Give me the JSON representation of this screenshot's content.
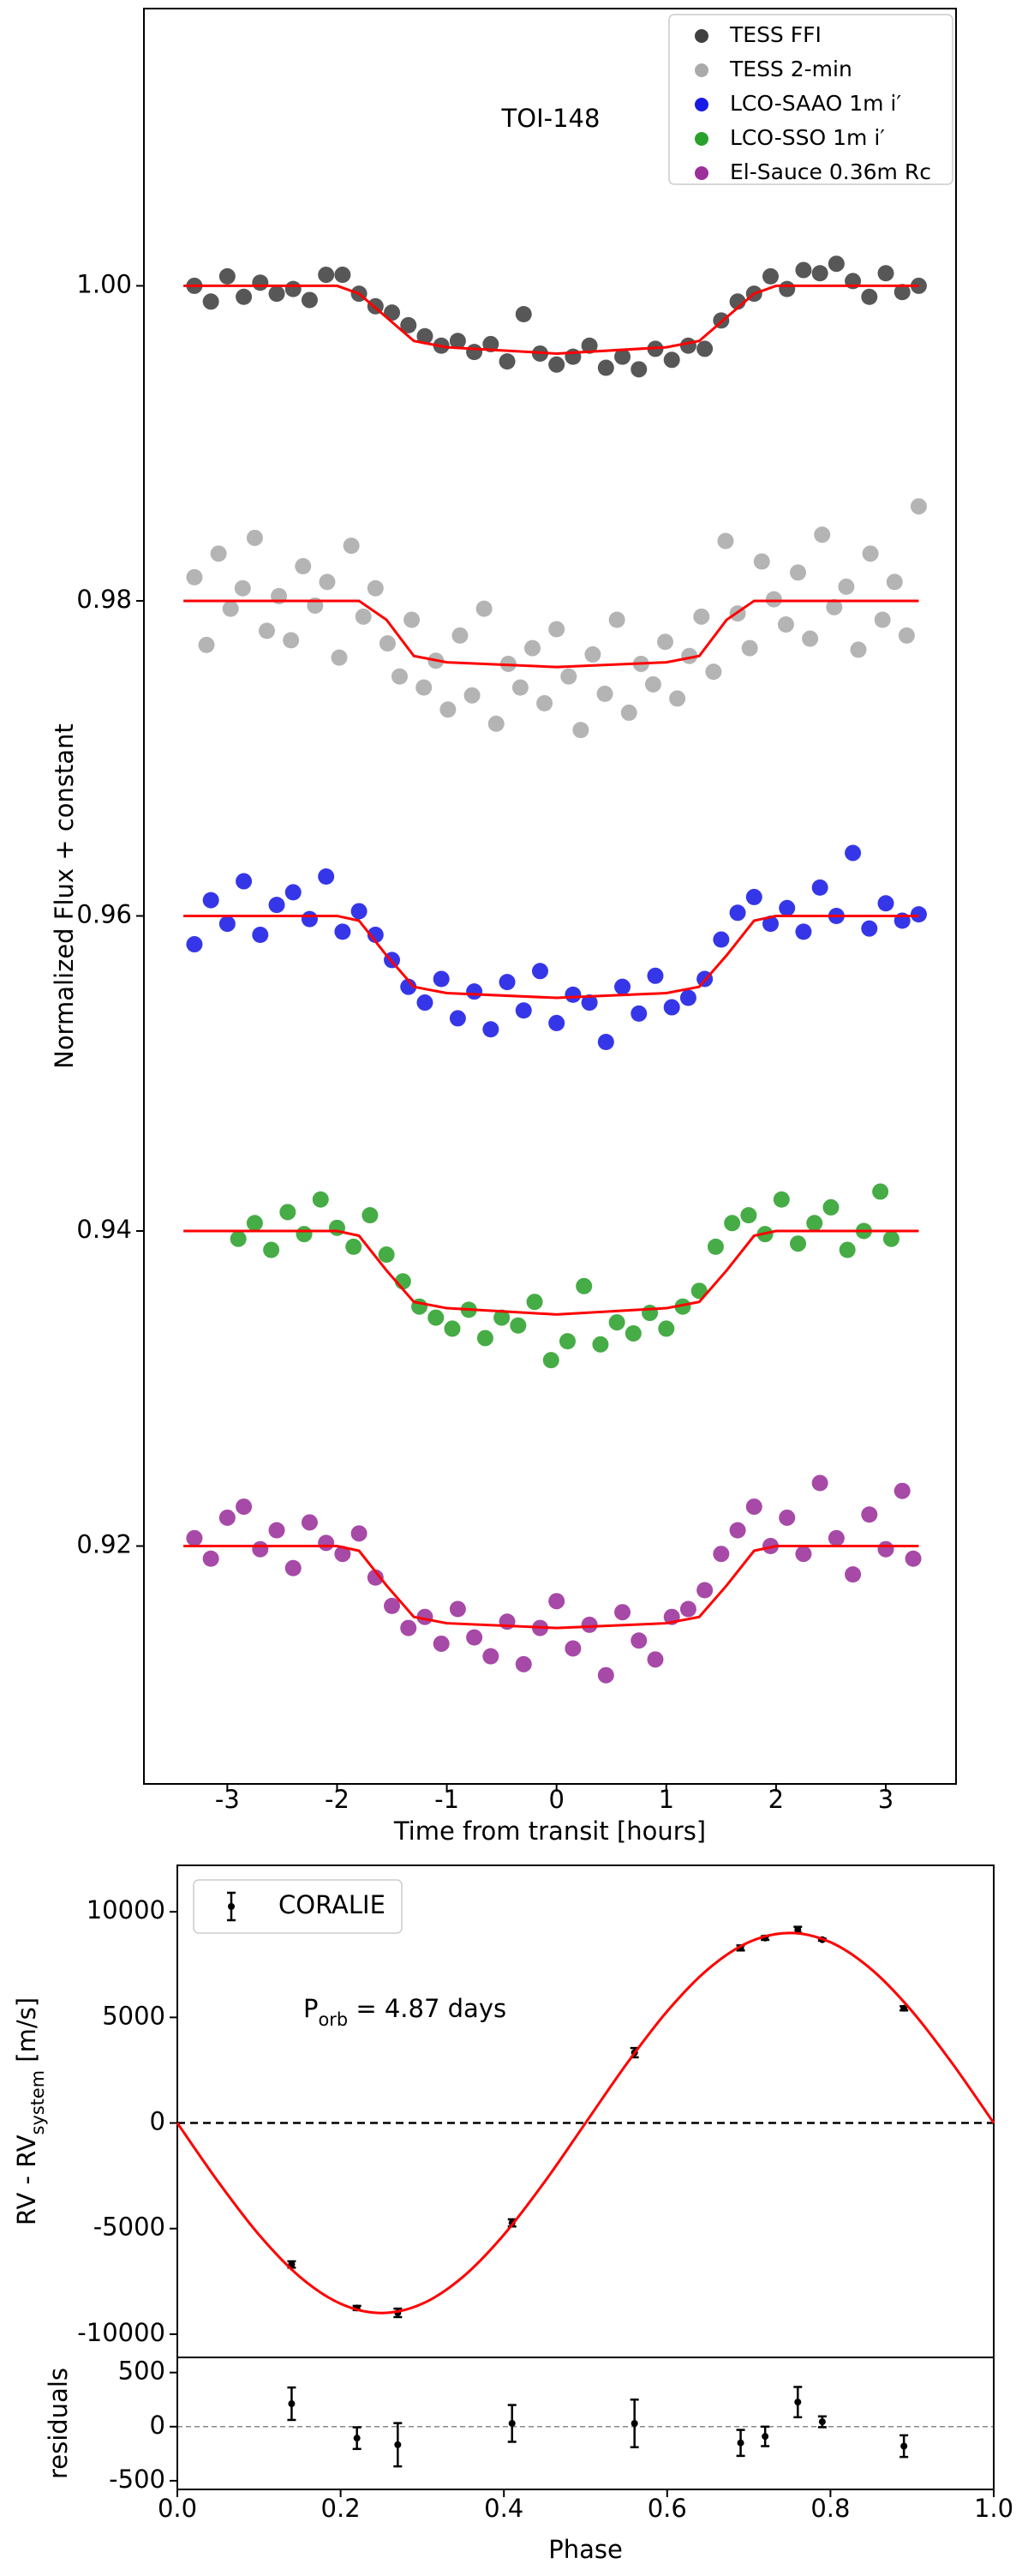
{
  "chart_data": [
    {
      "type": "scatter",
      "annotation": "TOI-148",
      "x_label": "Time from transit [hours]",
      "y_label": "Normalized Flux + constant",
      "xlim": [
        -3.76,
        3.64
      ],
      "ylim": [
        0.9049,
        1.0176
      ],
      "xticks": [
        -3,
        -2,
        -1,
        0,
        1,
        2,
        3
      ],
      "yticks": [
        0.92,
        0.94,
        0.96,
        0.98,
        {
          "value": 1,
          "label": "1.00"
        }
      ],
      "legend": "upper right",
      "series": [
        {
          "name": "TESS FFI",
          "color": "#404040",
          "x": [
            -3.3,
            -3.15,
            -3.0,
            -2.85,
            -2.7,
            -2.55,
            -2.4,
            -2.25,
            -2.1,
            -1.95,
            -1.8,
            -1.65,
            -1.5,
            -1.35,
            -1.2,
            -1.05,
            -0.9,
            -0.75,
            -0.6,
            -0.45,
            -0.3,
            -0.15,
            0.0,
            0.15,
            0.3,
            0.45,
            0.6,
            0.75,
            0.9,
            1.05,
            1.2,
            1.35,
            1.5,
            1.65,
            1.8,
            1.95,
            2.1,
            2.25,
            2.4,
            2.55,
            2.7,
            2.85,
            3.0,
            3.15,
            3.3
          ],
          "values": [
            1.0,
            0.999,
            1.0006,
            0.9993,
            1.0002,
            0.9995,
            0.9998,
            0.9991,
            1.0007,
            1.0007,
            0.9995,
            0.9987,
            0.9983,
            0.9975,
            0.9968,
            0.9962,
            0.9965,
            0.9958,
            0.9963,
            0.9952,
            0.9982,
            0.9957,
            0.995,
            0.9955,
            0.9962,
            0.9948,
            0.9955,
            0.9947,
            0.996,
            0.9953,
            0.9962,
            0.996,
            0.9978,
            0.999,
            0.9995,
            1.0006,
            0.9998,
            1.001,
            1.0008,
            1.0014,
            1.0003,
            0.9993,
            1.0008,
            0.9996,
            1.0
          ]
        },
        {
          "name": "TESS 2-min",
          "color": "#aaaaaa",
          "x": [
            -3.3,
            -3.19,
            -3.08,
            -2.97,
            -2.86,
            -2.75,
            -2.64,
            -2.53,
            -2.42,
            -2.31,
            -2.2,
            -2.09,
            -1.98,
            -1.87,
            -1.76,
            -1.65,
            -1.54,
            -1.43,
            -1.32,
            -1.21,
            -1.1,
            -0.99,
            -0.88,
            -0.77,
            -0.66,
            -0.55,
            -0.44,
            -0.33,
            -0.22,
            -0.11,
            0,
            0.11,
            0.22,
            0.33,
            0.44,
            0.55,
            0.66,
            0.77,
            0.88,
            0.99,
            1.1,
            1.21,
            1.32,
            1.43,
            1.54,
            1.65,
            1.76,
            1.87,
            1.98,
            2.09,
            2.2,
            2.31,
            2.42,
            2.53,
            2.64,
            2.75,
            2.86,
            2.97,
            3.08,
            3.19,
            3.3
          ],
          "values": [
            0.9815,
            0.9772,
            0.983,
            0.9795,
            0.9808,
            0.984,
            0.9781,
            0.9803,
            0.9775,
            0.9822,
            0.9797,
            0.9812,
            0.9764,
            0.9835,
            0.979,
            0.9808,
            0.9773,
            0.9752,
            0.9788,
            0.9745,
            0.9762,
            0.9731,
            0.9778,
            0.974,
            0.9795,
            0.9722,
            0.976,
            0.9745,
            0.977,
            0.9735,
            0.9782,
            0.9752,
            0.9718,
            0.9766,
            0.9741,
            0.9788,
            0.9729,
            0.976,
            0.9747,
            0.9774,
            0.9738,
            0.9765,
            0.979,
            0.9755,
            0.9838,
            0.9792,
            0.977,
            0.9825,
            0.9801,
            0.9785,
            0.9818,
            0.9776,
            0.9842,
            0.9796,
            0.9809,
            0.9769,
            0.983,
            0.9788,
            0.9812,
            0.9778,
            0.986
          ]
        },
        {
          "name": "LCO-SAAO 1m i′",
          "color": "#1a1ae6",
          "x": [
            -3.3,
            -3.15,
            -3.0,
            -2.85,
            -2.7,
            -2.55,
            -2.4,
            -2.25,
            -2.1,
            -1.95,
            -1.8,
            -1.65,
            -1.5,
            -1.35,
            -1.2,
            -1.05,
            -0.9,
            -0.75,
            -0.6,
            -0.45,
            -0.3,
            -0.15,
            0.0,
            0.15,
            0.3,
            0.45,
            0.6,
            0.75,
            0.9,
            1.05,
            1.2,
            1.35,
            1.5,
            1.65,
            1.8,
            1.95,
            2.1,
            2.25,
            2.4,
            2.55,
            2.7,
            2.85,
            3.0,
            3.15,
            3.3
          ],
          "values": [
            0.9582,
            0.961,
            0.9595,
            0.9622,
            0.9588,
            0.9607,
            0.9615,
            0.9598,
            0.9625,
            0.959,
            0.9603,
            0.9588,
            0.9572,
            0.9555,
            0.9545,
            0.956,
            0.9535,
            0.9552,
            0.9528,
            0.9558,
            0.954,
            0.9565,
            0.9532,
            0.955,
            0.9545,
            0.952,
            0.9555,
            0.9538,
            0.9562,
            0.9542,
            0.9548,
            0.956,
            0.9585,
            0.9602,
            0.9612,
            0.9595,
            0.9605,
            0.959,
            0.9618,
            0.96,
            0.964,
            0.9592,
            0.9608,
            0.9597,
            0.9601
          ]
        },
        {
          "name": "LCO-SSO 1m i′",
          "color": "#2ca02c",
          "x": [
            -2.9,
            -2.75,
            -2.6,
            -2.45,
            -2.3,
            -2.15,
            -2.0,
            -1.85,
            -1.7,
            -1.55,
            -1.4,
            -1.25,
            -1.1,
            -0.95,
            -0.8,
            -0.65,
            -0.5,
            -0.35,
            -0.2,
            -0.05,
            0.1,
            0.25,
            0.4,
            0.55,
            0.7,
            0.85,
            1.0,
            1.15,
            1.3,
            1.45,
            1.6,
            1.75,
            1.9,
            2.05,
            2.2,
            2.35,
            2.5,
            2.65,
            2.8,
            2.95,
            3.05
          ],
          "values": [
            0.9395,
            0.9405,
            0.9388,
            0.9412,
            0.9398,
            0.942,
            0.9402,
            0.939,
            0.941,
            0.9385,
            0.9368,
            0.9352,
            0.9345,
            0.9338,
            0.935,
            0.9332,
            0.9345,
            0.934,
            0.9355,
            0.9318,
            0.933,
            0.9365,
            0.9328,
            0.9342,
            0.9335,
            0.9348,
            0.9338,
            0.9352,
            0.9362,
            0.939,
            0.9405,
            0.941,
            0.9398,
            0.942,
            0.9392,
            0.9405,
            0.9415,
            0.9388,
            0.94,
            0.9425,
            0.9395
          ]
        },
        {
          "name": "El-Sauce 0.36m Rc",
          "color": "#9b309b",
          "x": [
            -3.3,
            -3.15,
            -3.0,
            -2.85,
            -2.7,
            -2.55,
            -2.4,
            -2.25,
            -2.1,
            -1.95,
            -1.8,
            -1.65,
            -1.5,
            -1.35,
            -1.2,
            -1.05,
            -0.9,
            -0.75,
            -0.6,
            -0.45,
            -0.3,
            -0.15,
            0.0,
            0.15,
            0.3,
            0.45,
            0.6,
            0.75,
            0.9,
            1.05,
            1.2,
            1.35,
            1.5,
            1.65,
            1.8,
            1.95,
            2.1,
            2.25,
            2.4,
            2.55,
            2.7,
            2.85,
            3.0,
            3.15,
            3.25
          ],
          "values": [
            0.9205,
            0.9192,
            0.9218,
            0.9225,
            0.9198,
            0.921,
            0.9186,
            0.9215,
            0.9202,
            0.9195,
            0.9208,
            0.918,
            0.9162,
            0.9148,
            0.9155,
            0.9138,
            0.916,
            0.9142,
            0.913,
            0.9152,
            0.9125,
            0.9148,
            0.9165,
            0.9135,
            0.915,
            0.9118,
            0.9158,
            0.914,
            0.9128,
            0.9155,
            0.916,
            0.9172,
            0.9195,
            0.921,
            0.9225,
            0.92,
            0.9218,
            0.9195,
            0.924,
            0.9205,
            0.9182,
            0.922,
            0.9198,
            0.9235,
            0.9192
          ]
        }
      ],
      "models": [
        {
          "color": "#ff0000",
          "x": [
            -3.4,
            -2.0,
            -1.8,
            -1.55,
            -1.3,
            -1.0,
            0,
            1.0,
            1.3,
            1.55,
            1.8,
            2.0,
            3.3
          ],
          "values": [
            1,
            1,
            0.9995,
            0.998,
            0.9965,
            0.9961,
            0.9957,
            0.9961,
            0.9965,
            0.998,
            0.9995,
            1,
            1
          ]
        },
        {
          "color": "#ff0000",
          "x": [
            -3.4,
            -2.0,
            -1.8,
            -1.55,
            -1.3,
            -1.0,
            0,
            1.0,
            1.3,
            1.55,
            1.8,
            2.0,
            3.3
          ],
          "values": [
            0.98,
            0.98,
            0.98,
            0.9788,
            0.9765,
            0.9761,
            0.9758,
            0.9761,
            0.9765,
            0.9788,
            0.98,
            0.98,
            0.98
          ]
        },
        {
          "color": "#ff0000",
          "x": [
            -3.4,
            -2.0,
            -1.8,
            -1.55,
            -1.3,
            -1.0,
            0,
            1.0,
            1.3,
            1.55,
            1.8,
            2.0,
            3.3
          ],
          "values": [
            0.96,
            0.96,
            0.9597,
            0.9575,
            0.9555,
            0.9551,
            0.9548,
            0.9551,
            0.9555,
            0.9575,
            0.9597,
            0.96,
            0.96
          ]
        },
        {
          "color": "#ff0000",
          "x": [
            -3.4,
            -2.0,
            -1.8,
            -1.55,
            -1.3,
            -1.0,
            0,
            1.0,
            1.3,
            1.55,
            1.8,
            2.0,
            3.3
          ],
          "values": [
            0.94,
            0.94,
            0.9397,
            0.9375,
            0.9355,
            0.9351,
            0.9347,
            0.9351,
            0.9355,
            0.9375,
            0.9397,
            0.94,
            0.94
          ]
        },
        {
          "color": "#ff0000",
          "x": [
            -3.4,
            -2.0,
            -1.8,
            -1.55,
            -1.3,
            -1.0,
            0,
            1.0,
            1.3,
            1.55,
            1.8,
            2.0,
            3.3
          ],
          "values": [
            0.92,
            0.92,
            0.9197,
            0.9175,
            0.9155,
            0.9151,
            0.9148,
            0.9151,
            0.9155,
            0.9175,
            0.9197,
            0.92,
            0.92
          ]
        }
      ]
    },
    {
      "type": "errorbar",
      "annotation": [
        {
          "text": "P"
        },
        {
          "text": "orb",
          "sub": true
        },
        {
          "text": " = 4.87 days"
        }
      ],
      "y_label": [
        {
          "text": "RV - RV"
        },
        {
          "text": "system",
          "sub": true
        },
        {
          "text": " [m/s]"
        }
      ],
      "xlim": [
        0,
        1
      ],
      "ylim": [
        -11100,
        12200
      ],
      "yticks": [
        -10000,
        -5000,
        0,
        5000,
        10000
      ],
      "reference_line": 0,
      "reference_color": "#000000",
      "legend": "upper left",
      "series": [
        {
          "name": "CORALIE",
          "color": "#000000",
          "x": [
            0.14,
            0.22,
            0.27,
            0.41,
            0.56,
            0.69,
            0.72,
            0.76,
            0.79,
            0.89
          ],
          "values": [
            -6700,
            -8760,
            -8990,
            -4730,
            3330,
            8290,
            8760,
            9150,
            8680,
            5430
          ],
          "errors": [
            150,
            100,
            200,
            170,
            220,
            120,
            90,
            140,
            50,
            100
          ]
        }
      ],
      "models": [
        {
          "color": "#ff0000",
          "smooth": true,
          "x": [
            0,
            0.05,
            0.1,
            0.15,
            0.2,
            0.25,
            0.3,
            0.35,
            0.4,
            0.45,
            0.5,
            0.55,
            0.6,
            0.65,
            0.7,
            0.75,
            0.8,
            0.85,
            0.9,
            0.95,
            1
          ],
          "values": [
            0,
            -2781,
            -5290,
            -7281,
            -8560,
            -9000,
            -8560,
            -7281,
            -5290,
            -2781,
            0,
            2781,
            5290,
            7281,
            8560,
            9000,
            8560,
            7281,
            5290,
            2781,
            0
          ]
        }
      ]
    },
    {
      "type": "errorbar",
      "x_label": "Phase",
      "y_label": "residuals",
      "xlim": [
        0,
        1
      ],
      "ylim": [
        -580,
        640
      ],
      "xticks": [
        {
          "value": 0,
          "label": "0.0"
        },
        0.2,
        0.4,
        0.6,
        0.8,
        {
          "value": 1,
          "label": "1.0"
        }
      ],
      "yticks": [
        -500,
        0,
        500
      ],
      "reference_line": 0,
      "reference_color": "#888888",
      "series": [
        {
          "color": "#000000",
          "x": [
            0.14,
            0.22,
            0.27,
            0.41,
            0.56,
            0.69,
            0.72,
            0.76,
            0.79,
            0.89
          ],
          "values": [
            212,
            -106,
            -167,
            30,
            30,
            -150,
            -90,
            227,
            45,
            -180
          ],
          "errors": [
            150,
            100,
            200,
            170,
            220,
            120,
            90,
            140,
            50,
            100
          ]
        }
      ]
    }
  ]
}
